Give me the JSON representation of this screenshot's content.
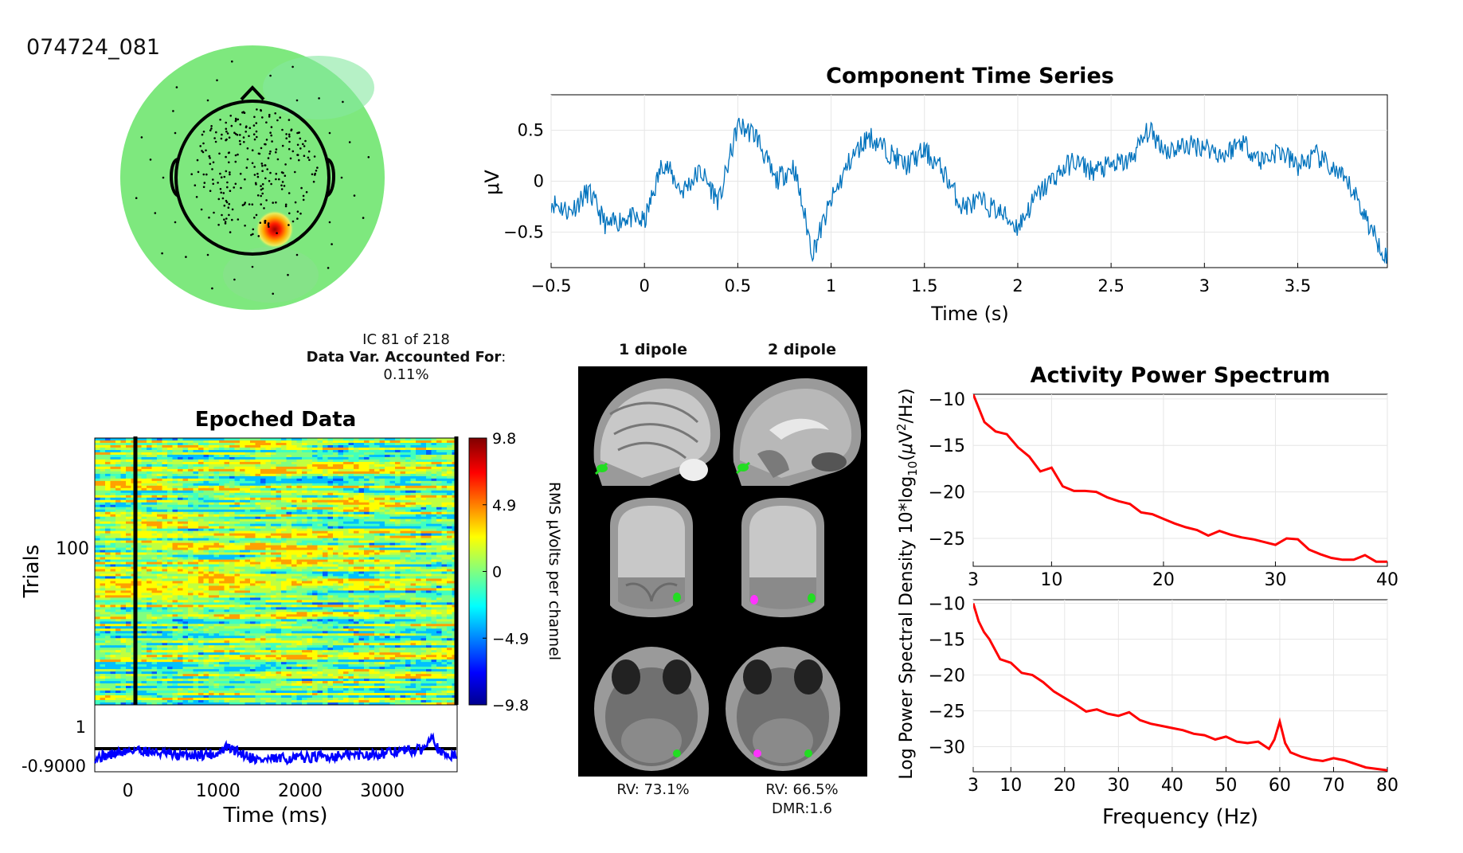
{
  "dataset_id": "074724_081",
  "ic_info": {
    "line1": "IC 81 of 218",
    "var_label": "Data Var. Accounted For",
    "var_suffix": ":",
    "var_value": "0.11%"
  },
  "dipoles": {
    "left_title": "1 dipole",
    "right_title": "2 dipole",
    "left_rv": "RV: 73.1%",
    "right_rv": "RV: 66.5%",
    "right_dmr": "DMR:1.6"
  },
  "colors": {
    "timeseries": "#0072bd",
    "spectrum": "#ff0000",
    "erp": "#0000ff",
    "topo_bg": "#7ee87e"
  },
  "chart_data": [
    {
      "name": "topography",
      "type": "heatmap",
      "title": "",
      "note": "scalp map, mostly uniform green with a single red focus over posterior-right"
    },
    {
      "name": "component_time_series",
      "type": "line",
      "title": "Component Time Series",
      "xlabel": "Time (s)",
      "ylabel": "μV",
      "xlim": [
        -0.5,
        3.98
      ],
      "ylim": [
        -0.85,
        0.85
      ],
      "xticks": [
        "-0.5",
        "0",
        "0.5",
        "1",
        "1.5",
        "2",
        "2.5",
        "3",
        "3.5"
      ],
      "yticks": [
        "0.5",
        "0",
        "-0.5"
      ],
      "grid": true,
      "x": [
        -0.5,
        -0.4,
        -0.3,
        -0.2,
        -0.1,
        0.0,
        0.1,
        0.2,
        0.3,
        0.4,
        0.5,
        0.6,
        0.7,
        0.8,
        0.9,
        1.0,
        1.1,
        1.2,
        1.3,
        1.4,
        1.5,
        1.6,
        1.7,
        1.8,
        1.9,
        2.0,
        2.1,
        2.2,
        2.3,
        2.4,
        2.5,
        2.6,
        2.7,
        2.8,
        2.9,
        3.0,
        3.1,
        3.2,
        3.3,
        3.4,
        3.5,
        3.6,
        3.7,
        3.8,
        3.9,
        3.98
      ],
      "values": [
        -0.2,
        -0.3,
        -0.1,
        -0.45,
        -0.35,
        -0.4,
        0.2,
        -0.1,
        0.1,
        -0.2,
        0.55,
        0.45,
        0.0,
        0.15,
        -0.7,
        -0.2,
        0.2,
        0.45,
        0.3,
        0.15,
        0.3,
        0.1,
        -0.25,
        -0.2,
        -0.3,
        -0.45,
        -0.15,
        0.05,
        0.2,
        0.1,
        0.15,
        0.2,
        0.5,
        0.3,
        0.35,
        0.35,
        0.25,
        0.4,
        0.2,
        0.3,
        0.15,
        0.25,
        0.1,
        -0.1,
        -0.5,
        -0.75
      ]
    },
    {
      "name": "epoched_data",
      "type": "heatmap",
      "title": "Epoched Data",
      "xlabel": "Time (ms)",
      "ylabel": "Trials",
      "xticks": [
        "0",
        "1000",
        "2000",
        "3000"
      ],
      "yticks": [
        "100"
      ],
      "colorbar_label": "RMS μVolts per channel",
      "colorbar_ticks": [
        "9.8",
        "4.9",
        "0",
        "-4.9",
        "-9.8"
      ],
      "clim": [
        -9.8,
        9.8
      ],
      "erp_yticks": [
        "1",
        "-0.9000"
      ],
      "erp_x_ms": [
        -500,
        0,
        500,
        1000,
        1100,
        1500,
        2000,
        2500,
        3000,
        3200,
        3500,
        3600,
        3700,
        3900
      ],
      "erp_values": [
        -0.5,
        -0.1,
        -0.4,
        -0.3,
        0.0,
        -0.6,
        -0.5,
        -0.4,
        -0.3,
        -0.2,
        -0.1,
        0.7,
        -0.3,
        -0.4
      ]
    },
    {
      "name": "activity_power_spectrum_top",
      "type": "line",
      "title": "Activity Power Spectrum",
      "xlim": [
        3,
        40
      ],
      "ylim": [
        -28,
        -9.5
      ],
      "xticks": [
        "3",
        "10",
        "20",
        "30",
        "40"
      ],
      "yticks": [
        "-10",
        "-15",
        "-20",
        "-25"
      ],
      "grid": true,
      "x": [
        3,
        4,
        5,
        6,
        7,
        8,
        9,
        10,
        11,
        12,
        13,
        14,
        15,
        16,
        17,
        18,
        19,
        20,
        21,
        22,
        23,
        24,
        25,
        26,
        27,
        28,
        29,
        30,
        31,
        32,
        33,
        34,
        35,
        36,
        37,
        38,
        39,
        40
      ],
      "values": [
        -9.5,
        -12.5,
        -13.5,
        -13.8,
        -15.2,
        -16.2,
        -17.8,
        -17.4,
        -19.4,
        -19.9,
        -19.9,
        -20.0,
        -20.6,
        -21.0,
        -21.3,
        -22.2,
        -22.4,
        -22.9,
        -23.4,
        -23.8,
        -24.1,
        -24.7,
        -24.2,
        -24.6,
        -24.9,
        -25.1,
        -25.4,
        -25.7,
        -25.0,
        -25.1,
        -26.2,
        -26.7,
        -27.1,
        -27.3,
        -27.3,
        -26.8,
        -27.5,
        -27.5
      ]
    },
    {
      "name": "activity_power_spectrum_bottom",
      "type": "line",
      "title": "",
      "xlabel": "Frequency (Hz)",
      "ylabel": "Log Power Spectral Density 10*log10(μV²/Hz)",
      "xlim": [
        3,
        80
      ],
      "ylim": [
        -33.5,
        -9.5
      ],
      "xticks": [
        "3",
        "10",
        "20",
        "30",
        "40",
        "50",
        "60",
        "70",
        "80"
      ],
      "yticks": [
        "-10",
        "-15",
        "-20",
        "-25",
        "-30"
      ],
      "grid": true,
      "x": [
        3,
        4,
        5,
        6,
        8,
        10,
        12,
        14,
        16,
        18,
        20,
        22,
        24,
        26,
        28,
        30,
        32,
        34,
        36,
        38,
        40,
        42,
        44,
        46,
        48,
        50,
        52,
        54,
        56,
        58,
        59,
        60,
        61,
        62,
        64,
        66,
        68,
        70,
        72,
        74,
        76,
        78,
        80
      ],
      "values": [
        -10,
        -12.5,
        -14,
        -15,
        -17.8,
        -18.3,
        -19.7,
        -20,
        -21,
        -22.3,
        -23.2,
        -24.1,
        -25.1,
        -24.8,
        -25.4,
        -25.7,
        -25.2,
        -26.3,
        -26.8,
        -27.1,
        -27.4,
        -27.7,
        -28.2,
        -28.4,
        -29.0,
        -28.6,
        -29.3,
        -29.5,
        -29.3,
        -30.3,
        -29.0,
        -26.5,
        -29.5,
        -30.8,
        -31.4,
        -31.8,
        -32.0,
        -31.6,
        -31.9,
        -32.4,
        -32.9,
        -33.1,
        -33.3
      ]
    }
  ]
}
